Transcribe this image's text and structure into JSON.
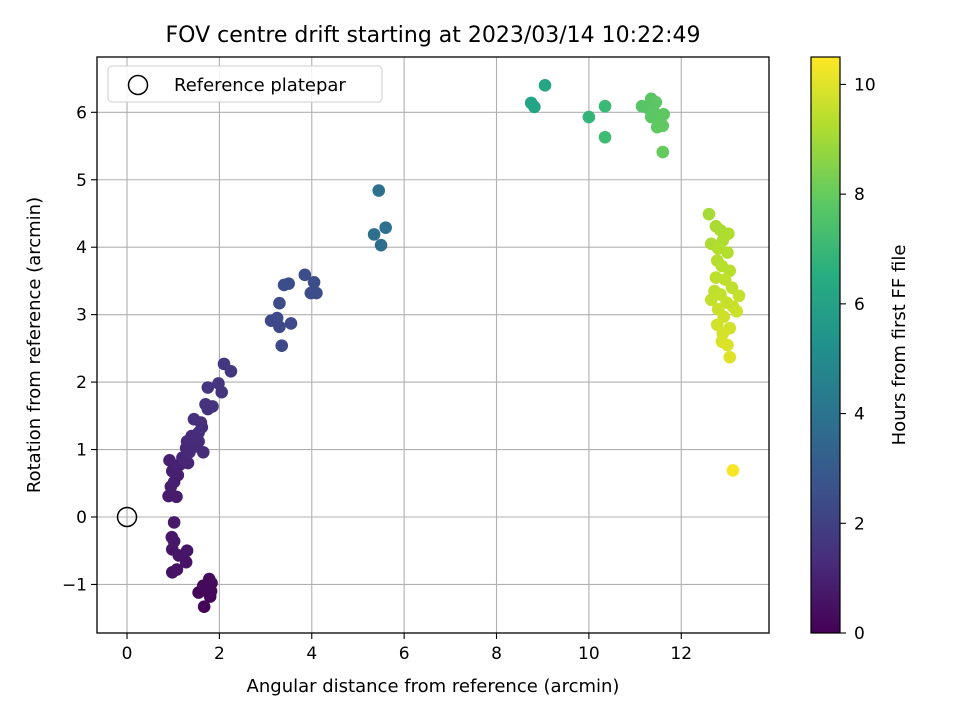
{
  "chart_data": {
    "type": "scatter",
    "title": "FOV centre drift starting at 2023/03/14 10:22:49",
    "xlabel": "Angular distance from reference (arcmin)",
    "ylabel": "Rotation from reference (arcmin)",
    "xlim": [
      -0.65,
      13.9
    ],
    "ylim": [
      -1.72,
      6.82
    ],
    "xticks": [
      0,
      2,
      4,
      6,
      8,
      10,
      12
    ],
    "yticks": [
      -1,
      0,
      1,
      2,
      3,
      4,
      5,
      6
    ],
    "xtick_labels": [
      "0",
      "2",
      "4",
      "6",
      "8",
      "10",
      "12"
    ],
    "ytick_labels": [
      "−1",
      "0",
      "1",
      "2",
      "3",
      "4",
      "5",
      "6"
    ],
    "grid": true,
    "legend": {
      "placement": "top-left",
      "entries": [
        "Reference platepar"
      ]
    },
    "reference_point": {
      "x": 0,
      "y": 0
    },
    "colorbar": {
      "label": "Hours from first FF file",
      "range": [
        0,
        10.5
      ],
      "ticks": [
        0,
        2,
        4,
        6,
        8,
        10
      ],
      "tick_labels": [
        "0",
        "2",
        "4",
        "6",
        "8",
        "10"
      ],
      "colormap": "viridis"
    },
    "points": [
      {
        "x": 1.67,
        "y": -1.33,
        "h": 0.1
      },
      {
        "x": 1.8,
        "y": -1.18,
        "h": 0.15
      },
      {
        "x": 1.55,
        "y": -1.12,
        "h": 0.1
      },
      {
        "x": 1.82,
        "y": -1.1,
        "h": 0.2
      },
      {
        "x": 1.75,
        "y": -1.05,
        "h": 0.2
      },
      {
        "x": 1.83,
        "y": -0.98,
        "h": 0.25
      },
      {
        "x": 1.78,
        "y": -0.92,
        "h": 0.3
      },
      {
        "x": 1.65,
        "y": -1.02,
        "h": 0.25
      },
      {
        "x": 0.98,
        "y": -0.82,
        "h": 0.5
      },
      {
        "x": 1.08,
        "y": -0.78,
        "h": 0.55
      },
      {
        "x": 1.28,
        "y": -0.67,
        "h": 0.55
      },
      {
        "x": 1.12,
        "y": -0.57,
        "h": 0.6
      },
      {
        "x": 1.3,
        "y": -0.5,
        "h": 0.65
      },
      {
        "x": 0.98,
        "y": -0.48,
        "h": 0.6
      },
      {
        "x": 1.02,
        "y": -0.36,
        "h": 0.7
      },
      {
        "x": 0.97,
        "y": -0.3,
        "h": 0.7
      },
      {
        "x": 1.02,
        "y": -0.08,
        "h": 0.75
      },
      {
        "x": 0.9,
        "y": 0.31,
        "h": 0.8
      },
      {
        "x": 1.07,
        "y": 0.3,
        "h": 0.8
      },
      {
        "x": 0.95,
        "y": 0.45,
        "h": 0.85
      },
      {
        "x": 1.02,
        "y": 0.52,
        "h": 0.9
      },
      {
        "x": 1.1,
        "y": 0.62,
        "h": 0.9
      },
      {
        "x": 0.98,
        "y": 0.68,
        "h": 0.95
      },
      {
        "x": 1.15,
        "y": 0.78,
        "h": 1.0
      },
      {
        "x": 0.92,
        "y": 0.84,
        "h": 0.95
      },
      {
        "x": 1.32,
        "y": 0.8,
        "h": 1.1
      },
      {
        "x": 1.2,
        "y": 0.88,
        "h": 1.1
      },
      {
        "x": 1.35,
        "y": 0.96,
        "h": 1.2
      },
      {
        "x": 1.65,
        "y": 0.96,
        "h": 1.3
      },
      {
        "x": 1.28,
        "y": 1.02,
        "h": 1.2
      },
      {
        "x": 1.45,
        "y": 1.04,
        "h": 1.25
      },
      {
        "x": 1.3,
        "y": 1.12,
        "h": 1.25
      },
      {
        "x": 1.55,
        "y": 1.12,
        "h": 1.3
      },
      {
        "x": 1.4,
        "y": 1.2,
        "h": 1.3
      },
      {
        "x": 1.55,
        "y": 1.25,
        "h": 1.35
      },
      {
        "x": 1.62,
        "y": 1.33,
        "h": 1.4
      },
      {
        "x": 1.6,
        "y": 1.4,
        "h": 1.4
      },
      {
        "x": 1.45,
        "y": 1.45,
        "h": 1.4
      },
      {
        "x": 1.75,
        "y": 1.6,
        "h": 1.5
      },
      {
        "x": 1.85,
        "y": 1.64,
        "h": 1.55
      },
      {
        "x": 1.7,
        "y": 1.67,
        "h": 1.55
      },
      {
        "x": 2.05,
        "y": 1.85,
        "h": 1.6
      },
      {
        "x": 1.75,
        "y": 1.92,
        "h": 1.6
      },
      {
        "x": 1.98,
        "y": 1.98,
        "h": 1.65
      },
      {
        "x": 2.25,
        "y": 2.16,
        "h": 1.7
      },
      {
        "x": 2.1,
        "y": 2.27,
        "h": 1.7
      },
      {
        "x": 3.35,
        "y": 2.54,
        "h": 2.3
      },
      {
        "x": 3.3,
        "y": 2.82,
        "h": 2.3
      },
      {
        "x": 3.55,
        "y": 2.87,
        "h": 2.35
      },
      {
        "x": 3.12,
        "y": 2.91,
        "h": 2.3
      },
      {
        "x": 3.25,
        "y": 2.95,
        "h": 2.35
      },
      {
        "x": 3.3,
        "y": 3.17,
        "h": 2.4
      },
      {
        "x": 3.98,
        "y": 3.32,
        "h": 2.45
      },
      {
        "x": 4.1,
        "y": 3.32,
        "h": 2.45
      },
      {
        "x": 4.05,
        "y": 3.48,
        "h": 2.5
      },
      {
        "x": 3.4,
        "y": 3.44,
        "h": 2.45
      },
      {
        "x": 3.5,
        "y": 3.46,
        "h": 2.5
      },
      {
        "x": 3.85,
        "y": 3.59,
        "h": 2.5
      },
      {
        "x": 5.5,
        "y": 4.03,
        "h": 3.8
      },
      {
        "x": 5.35,
        "y": 4.19,
        "h": 3.8
      },
      {
        "x": 5.6,
        "y": 4.29,
        "h": 3.85
      },
      {
        "x": 5.45,
        "y": 4.84,
        "h": 3.9
      },
      {
        "x": 8.75,
        "y": 6.14,
        "h": 6.1
      },
      {
        "x": 8.82,
        "y": 6.08,
        "h": 6.1
      },
      {
        "x": 9.05,
        "y": 6.4,
        "h": 6.2
      },
      {
        "x": 10.0,
        "y": 5.93,
        "h": 6.9
      },
      {
        "x": 10.35,
        "y": 6.09,
        "h": 7.1
      },
      {
        "x": 10.35,
        "y": 5.63,
        "h": 7.2
      },
      {
        "x": 11.15,
        "y": 6.09,
        "h": 7.7
      },
      {
        "x": 11.3,
        "y": 6.05,
        "h": 7.7
      },
      {
        "x": 11.35,
        "y": 6.2,
        "h": 7.75
      },
      {
        "x": 11.45,
        "y": 6.15,
        "h": 7.8
      },
      {
        "x": 11.35,
        "y": 5.93,
        "h": 7.8
      },
      {
        "x": 11.55,
        "y": 5.88,
        "h": 7.85
      },
      {
        "x": 11.62,
        "y": 5.97,
        "h": 7.85
      },
      {
        "x": 11.48,
        "y": 5.78,
        "h": 7.9
      },
      {
        "x": 11.6,
        "y": 5.8,
        "h": 7.9
      },
      {
        "x": 11.4,
        "y": 6.02,
        "h": 7.8
      },
      {
        "x": 11.6,
        "y": 5.41,
        "h": 8.0
      },
      {
        "x": 12.6,
        "y": 4.49,
        "h": 9.1
      },
      {
        "x": 12.75,
        "y": 4.31,
        "h": 9.15
      },
      {
        "x": 12.85,
        "y": 4.25,
        "h": 9.2
      },
      {
        "x": 12.65,
        "y": 4.05,
        "h": 9.2
      },
      {
        "x": 12.9,
        "y": 4.1,
        "h": 9.25
      },
      {
        "x": 13.02,
        "y": 4.2,
        "h": 9.25
      },
      {
        "x": 12.8,
        "y": 3.98,
        "h": 9.3
      },
      {
        "x": 13.0,
        "y": 3.92,
        "h": 9.3
      },
      {
        "x": 12.78,
        "y": 3.8,
        "h": 9.35
      },
      {
        "x": 12.88,
        "y": 3.72,
        "h": 9.4
      },
      {
        "x": 13.05,
        "y": 3.65,
        "h": 9.4
      },
      {
        "x": 12.75,
        "y": 3.55,
        "h": 9.45
      },
      {
        "x": 12.95,
        "y": 3.52,
        "h": 9.5
      },
      {
        "x": 13.1,
        "y": 3.4,
        "h": 9.5
      },
      {
        "x": 12.72,
        "y": 3.35,
        "h": 9.5
      },
      {
        "x": 12.85,
        "y": 3.3,
        "h": 9.55
      },
      {
        "x": 13.25,
        "y": 3.28,
        "h": 9.6
      },
      {
        "x": 12.65,
        "y": 3.22,
        "h": 9.55
      },
      {
        "x": 12.98,
        "y": 3.18,
        "h": 9.6
      },
      {
        "x": 13.12,
        "y": 3.12,
        "h": 9.65
      },
      {
        "x": 12.8,
        "y": 3.08,
        "h": 9.65
      },
      {
        "x": 13.2,
        "y": 3.05,
        "h": 9.7
      },
      {
        "x": 12.92,
        "y": 2.97,
        "h": 9.75
      },
      {
        "x": 12.78,
        "y": 2.85,
        "h": 9.8
      },
      {
        "x": 13.05,
        "y": 2.8,
        "h": 9.8
      },
      {
        "x": 12.9,
        "y": 2.72,
        "h": 9.85
      },
      {
        "x": 12.88,
        "y": 2.6,
        "h": 9.9
      },
      {
        "x": 13.0,
        "y": 2.55,
        "h": 9.95
      },
      {
        "x": 13.05,
        "y": 2.37,
        "h": 10.0
      },
      {
        "x": 13.12,
        "y": 0.69,
        "h": 10.4
      }
    ]
  }
}
